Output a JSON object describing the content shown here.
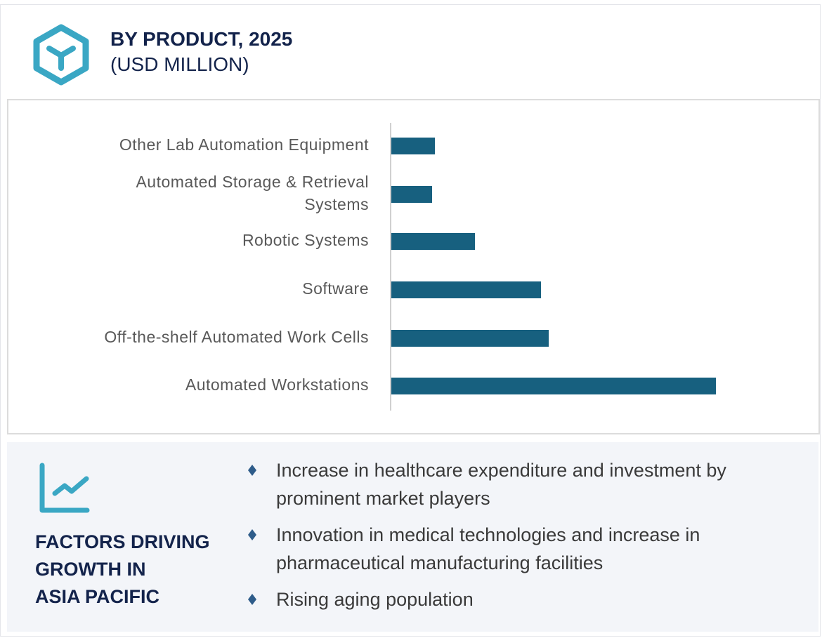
{
  "header": {
    "title": "BY PRODUCT, 2025",
    "subtitle": "(USD MILLION)",
    "icon": "hexagon-y-icon"
  },
  "colors": {
    "bar": "#17607f",
    "accent": "#3aa7c4",
    "title": "#13234b",
    "panel_bg": "#f3f5f9"
  },
  "chart_data": {
    "type": "bar",
    "orientation": "horizontal",
    "title": "BY PRODUCT, 2025",
    "unit": "(USD MILLION)",
    "categories": [
      "Other Lab Automation Equipment",
      "Automated Storage & Retrieval\nSystems",
      "Robotic Systems",
      "Software",
      "Off-the-shelf Automated Work Cells",
      "Automated Workstations"
    ],
    "values_relative_percent": [
      13.4,
      12.5,
      25.7,
      46.0,
      48.4,
      100
    ],
    "grid": false,
    "value_axis_shown": false
  },
  "drivers": {
    "icon": "trend-chart-icon",
    "title_lines": [
      "FACTORS DRIVING",
      "GROWTH IN",
      "ASIA PACIFIC"
    ],
    "items": [
      "Increase in healthcare expenditure and investment by prominent market players",
      "Innovation in medical technologies and increase in pharmaceutical manufacturing facilities",
      "Rising aging population"
    ]
  }
}
